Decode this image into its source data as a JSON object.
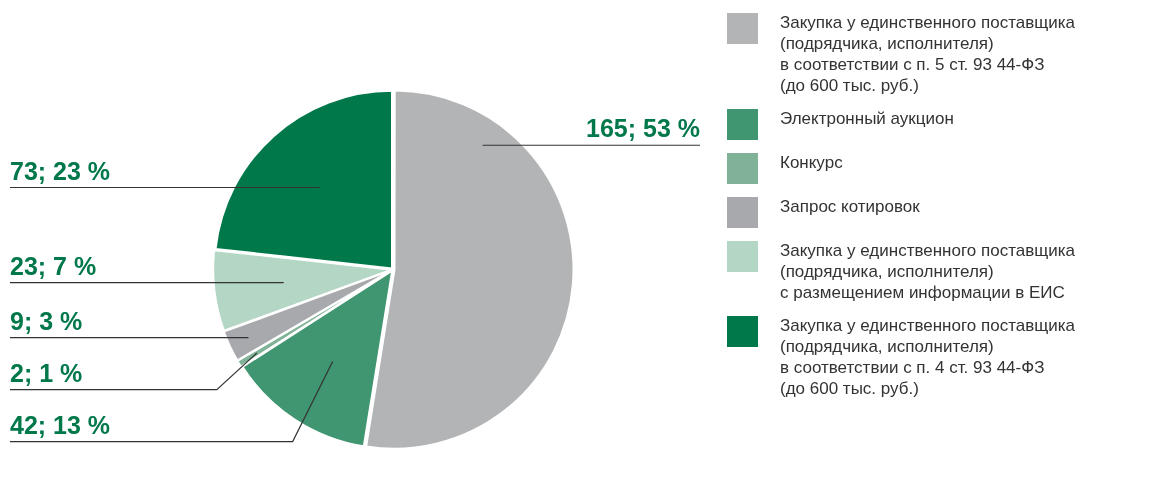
{
  "chart_data": {
    "type": "pie",
    "categories": [
      "Закупка у единственного поставщика\n(подрядчика, исполнителя)\nв соответствии с п. 5 ст. 93 44-ФЗ\n(до 600 тыс. руб.)",
      "Электронный аукцион",
      "Конкурс",
      "Запрос котировок",
      "Закупка у единственного поставщика\n(подрядчика, исполнителя)\nс размещением информации в ЕИС",
      "Закупка у единственного поставщика\n(подрядчика, исполнителя)\nв соответствии с п. 4 ст. 93 44-ФЗ\n(до 600 тыс. руб.)"
    ],
    "values": [
      165,
      42,
      2,
      9,
      23,
      73
    ],
    "value_labels": [
      "165; 53 %",
      "42; 13 %",
      "2; 1 %",
      "9; 3 %",
      "23; 7 %",
      "73; 23 %"
    ],
    "colors": [
      "#b3b4b6",
      "#3f9670",
      "#7fb296",
      "#a7a9ac",
      "#b4d6c4",
      "#00784a"
    ],
    "legend": "right"
  }
}
